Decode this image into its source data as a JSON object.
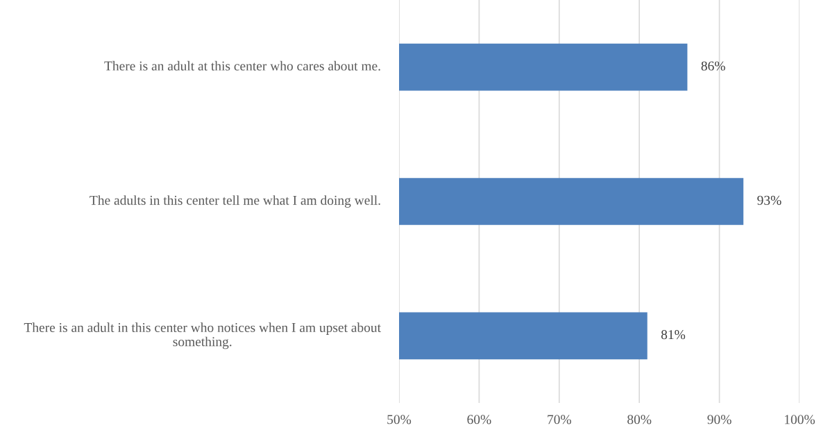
{
  "chart_data": {
    "type": "bar",
    "orientation": "horizontal",
    "categories": [
      "There is an adult at this center who cares about me.",
      "The adults in this center tell me what I am doing well.",
      "There is an adult in this center who notices when I am upset about something."
    ],
    "values": [
      86,
      93,
      81
    ],
    "value_labels": [
      "86%",
      "93%",
      "81%"
    ],
    "color": "#4f81bd",
    "xlim": [
      50,
      100
    ],
    "xticks": [
      {
        "value": 50,
        "label": "50%"
      },
      {
        "value": 60,
        "label": "60%"
      },
      {
        "value": 70,
        "label": "70%"
      },
      {
        "value": 80,
        "label": "80%"
      },
      {
        "value": 90,
        "label": "90%"
      },
      {
        "value": 100,
        "label": "100%"
      }
    ],
    "grid": "x",
    "legend": false
  }
}
